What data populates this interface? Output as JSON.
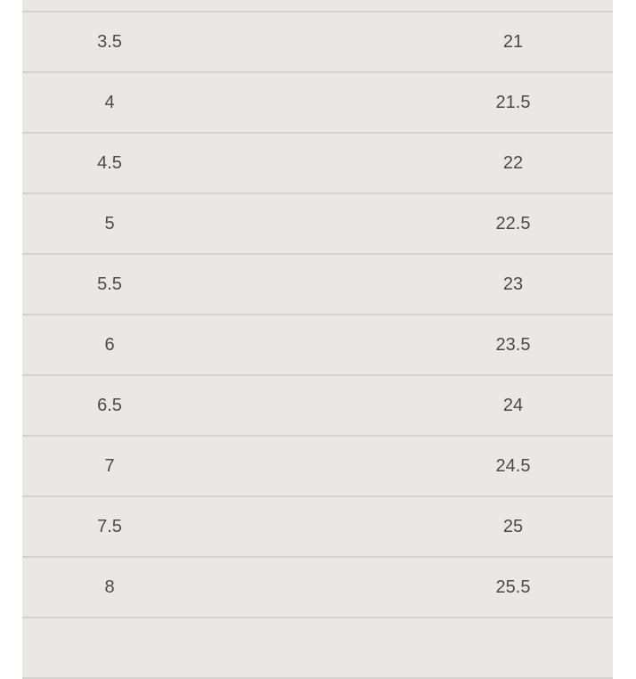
{
  "rows": [
    [
      "",
      ""
    ],
    [
      "3.5",
      "21"
    ],
    [
      "4",
      "21.5"
    ],
    [
      "4.5",
      "22"
    ],
    [
      "5",
      "22.5"
    ],
    [
      "5.5",
      "23"
    ],
    [
      "6",
      "23.5"
    ],
    [
      "6.5",
      "24"
    ],
    [
      "7",
      "24.5"
    ],
    [
      "7.5",
      "25"
    ],
    [
      "8",
      "25.5"
    ],
    [
      "",
      ""
    ]
  ]
}
